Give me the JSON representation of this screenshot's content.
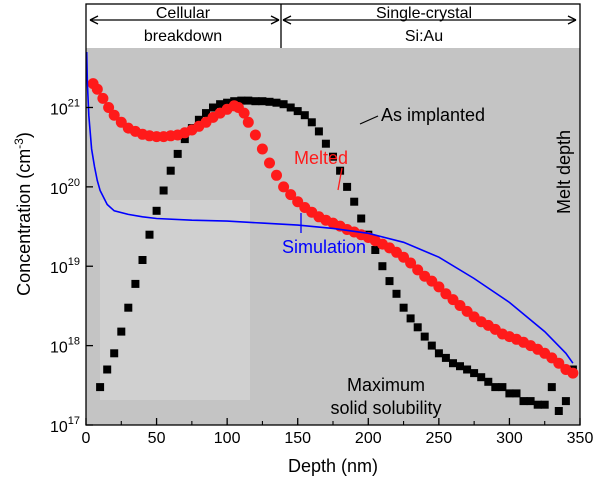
{
  "chart_data": {
    "type": "scatter",
    "xlabel": "Depth (nm)",
    "ylabel": "Concentration (cm",
    "ylabel_sup": "-3",
    "ylabel_close": ")",
    "xlim": [
      0,
      350
    ],
    "ylim": [
      1e+17,
      5e+21
    ],
    "yscale": "log",
    "x_ticks": [
      0,
      50,
      100,
      150,
      200,
      250,
      300,
      350
    ],
    "x_tick_labels": [
      "0",
      "50",
      "100",
      "150",
      "200",
      "250",
      "300",
      "350"
    ],
    "y_ticks": [
      {
        "value": 1e+17,
        "base": "10",
        "exp": "17"
      },
      {
        "value": 1e+18,
        "base": "10",
        "exp": "18"
      },
      {
        "value": 1e+19,
        "base": "10",
        "exp": "19"
      },
      {
        "value": 1e+20,
        "base": "10",
        "exp": "20"
      },
      {
        "value": 1e+21,
        "base": "10",
        "exp": "21"
      }
    ],
    "grid": false,
    "colors": {
      "as_implanted": "#000000",
      "melted": "#ff1a1a",
      "simulation": "#0000ff",
      "background": "#c4c4c4"
    },
    "regions": [
      {
        "label_lines": [
          "Cellular",
          "breakdown"
        ],
        "x_start": 0,
        "x_end": 140
      },
      {
        "label_lines": [
          "Single-crystal",
          "Si:Au"
        ],
        "x_start": 140,
        "x_end": 350
      }
    ],
    "annotations": {
      "as_implanted": "As implanted",
      "melted": "Melted",
      "simulation": "Simulation",
      "melt_depth": "Melt depth",
      "solubility_line1": "Maximum",
      "solubility_line2": "solid solubility"
    },
    "series": [
      {
        "name": "As implanted",
        "marker": "square",
        "x": [
          10,
          15,
          20,
          25,
          30,
          35,
          40,
          45,
          50,
          55,
          60,
          65,
          70,
          75,
          80,
          85,
          90,
          95,
          100,
          105,
          110,
          115,
          120,
          125,
          130,
          135,
          140,
          145,
          150,
          155,
          160,
          165,
          170,
          175,
          180,
          185,
          190,
          195,
          200,
          205,
          210,
          215,
          220,
          225,
          230,
          235,
          240,
          245,
          250,
          255,
          260,
          265,
          270,
          275,
          280,
          285,
          290,
          295,
          300,
          305,
          310,
          315,
          320,
          325,
          330,
          335,
          340,
          345
        ],
        "y": [
          3e+17,
          5e+17,
          8e+17,
          1.5e+18,
          3e+18,
          6e+18,
          1.2e+19,
          2.5e+19,
          5e+19,
          9e+19,
          1.6e+20,
          2.6e+20,
          4e+20,
          5.5e+20,
          7e+20,
          8.5e+20,
          1e+21,
          1.1e+21,
          1.15e+21,
          1.2e+21,
          1.22e+21,
          1.22e+21,
          1.2e+21,
          1.2e+21,
          1.18e+21,
          1.15e+21,
          1.1e+21,
          1e+21,
          9e+20,
          8e+20,
          6.5e+20,
          5e+20,
          3.5e+20,
          2.4e+20,
          1.6e+20,
          1e+20,
          6.5e+19,
          4e+19,
          2.5e+19,
          1.6e+19,
          1e+19,
          6.5e+18,
          4.5e+18,
          3e+18,
          2.2e+18,
          1.7e+18,
          1.3e+18,
          1e+18,
          8e+17,
          7e+17,
          6e+17,
          5.5e+17,
          5e+17,
          4.5e+17,
          4e+17,
          3.5e+17,
          3e+17,
          3e+17,
          2.5e+17,
          2.5e+17,
          2e+17,
          2e+17,
          1.8e+17,
          1.8e+17,
          3e+17,
          1.5e+17,
          2e+17,
          5e+17
        ]
      },
      {
        "name": "Melted",
        "marker": "circle",
        "x": [
          5,
          8,
          12,
          16,
          20,
          25,
          30,
          35,
          40,
          45,
          50,
          55,
          60,
          65,
          70,
          75,
          80,
          85,
          90,
          95,
          100,
          105,
          108,
          112,
          115,
          120,
          125,
          130,
          135,
          140,
          145,
          150,
          155,
          160,
          165,
          170,
          175,
          180,
          185,
          190,
          195,
          200,
          205,
          210,
          215,
          220,
          225,
          230,
          235,
          240,
          245,
          250,
          255,
          260,
          265,
          270,
          275,
          280,
          285,
          290,
          295,
          300,
          305,
          310,
          315,
          320,
          325,
          330,
          335,
          340,
          345
        ],
        "y": [
          2e+21,
          1.7e+21,
          1.3e+21,
          1e+21,
          8e+20,
          6.5e+20,
          5.5e+20,
          5e+20,
          4.6e+20,
          4.4e+20,
          4.3e+20,
          4.3e+20,
          4.4e+20,
          4.5e+20,
          4.8e+20,
          5.2e+20,
          5.8e+20,
          6.5e+20,
          7.5e+20,
          8.5e+20,
          9.5e+20,
          1.05e+21,
          1e+21,
          8.5e+20,
          6.5e+20,
          4.5e+20,
          3e+20,
          2e+20,
          1.4e+20,
          1e+20,
          8e+19,
          6.5e+19,
          5.5e+19,
          4.8e+19,
          4.2e+19,
          3.8e+19,
          3.5e+19,
          3.2e+19,
          2.9e+19,
          2.7e+19,
          2.5e+19,
          2.3e+19,
          2.1e+19,
          1.9e+19,
          1.7e+19,
          1.5e+19,
          1.3e+19,
          1.1e+19,
          9e+18,
          7.5e+18,
          6.5e+18,
          5.5e+18,
          4.5e+18,
          3.8e+18,
          3.2e+18,
          2.7e+18,
          2.3e+18,
          2e+18,
          1.8e+18,
          1.6e+18,
          1.4e+18,
          1.3e+18,
          1.2e+18,
          1.1e+18,
          1e+18,
          9e+17,
          8e+17,
          7e+17,
          6e+17,
          5e+17,
          4.5e+17
        ]
      },
      {
        "name": "Simulation",
        "marker": "line",
        "x": [
          0.5,
          1,
          2,
          4,
          6,
          8,
          10,
          15,
          20,
          30,
          40,
          50,
          75,
          100,
          125,
          150,
          175,
          200,
          225,
          250,
          275,
          300,
          325,
          340,
          345
        ],
        "y": [
          5e+21,
          2e+21,
          8e+20,
          3e+20,
          1.8e+20,
          1.2e+20,
          9e+19,
          6e+19,
          5e+19,
          4.5e+19,
          4.2e+19,
          4e+19,
          3.8e+19,
          3.7e+19,
          3.5e+19,
          3.3e+19,
          3e+19,
          2.6e+19,
          2e+19,
          1.3e+19,
          7e+18,
          3.5e+18,
          1.5e+18,
          8e+17,
          6e+17
        ]
      }
    ]
  }
}
